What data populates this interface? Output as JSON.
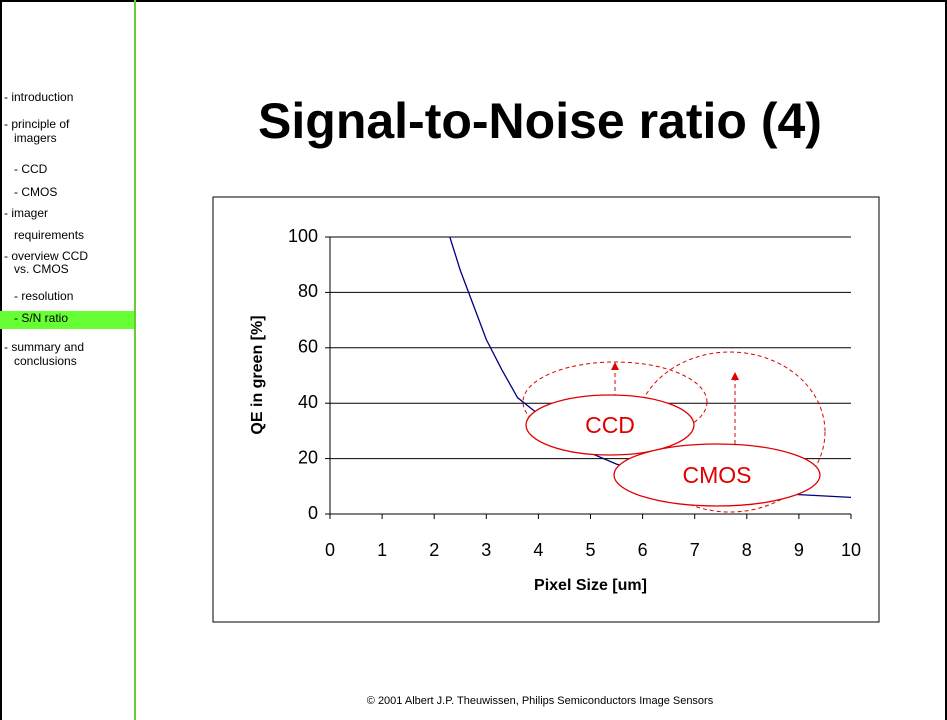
{
  "sidebar": {
    "items": [
      {
        "lines": [
          "- introduction"
        ]
      },
      {
        "lines": [
          "- principle of",
          "imagers"
        ]
      },
      {
        "lines": [
          "- CCD"
        ]
      },
      {
        "lines": [
          "- CMOS"
        ]
      },
      {
        "lines": [
          "- imager",
          "requirements"
        ]
      },
      {
        "lines": [
          "- overview CCD",
          "vs. CMOS"
        ]
      },
      {
        "lines": [
          "- resolution"
        ]
      },
      {
        "lines": [
          "- S/N ratio"
        ]
      },
      {
        "lines": [
          "- summary and",
          "conclusions"
        ]
      }
    ]
  },
  "title": "Signal-to-Noise ratio (4)",
  "chart_data": {
    "type": "line",
    "xlabel": "Pixel Size [um]",
    "ylabel": "QE in green [%]",
    "x": [
      2.3,
      2.5,
      2.8,
      3,
      3.3,
      3.6,
      4,
      4.5,
      5,
      5.5,
      6,
      7,
      8,
      9,
      10
    ],
    "series": [
      {
        "color": "#000080",
        "values": [
          100,
          88,
          73,
          63,
          52,
          42,
          36,
          29,
          22,
          18,
          15,
          11,
          8,
          7,
          6
        ]
      }
    ],
    "xlim": [
      0,
      10
    ],
    "xticks": [
      0,
      1,
      2,
      3,
      4,
      5,
      6,
      7,
      8,
      9,
      10
    ],
    "ylim": [
      0,
      100
    ],
    "yticks": [
      0,
      20,
      40,
      60,
      80,
      100
    ],
    "grid": true,
    "annotations": [
      "CCD",
      "CMOS"
    ]
  },
  "footer": "© 2001 Albert J.P. Theuwissen, Philips Semiconductors Image Sensors"
}
